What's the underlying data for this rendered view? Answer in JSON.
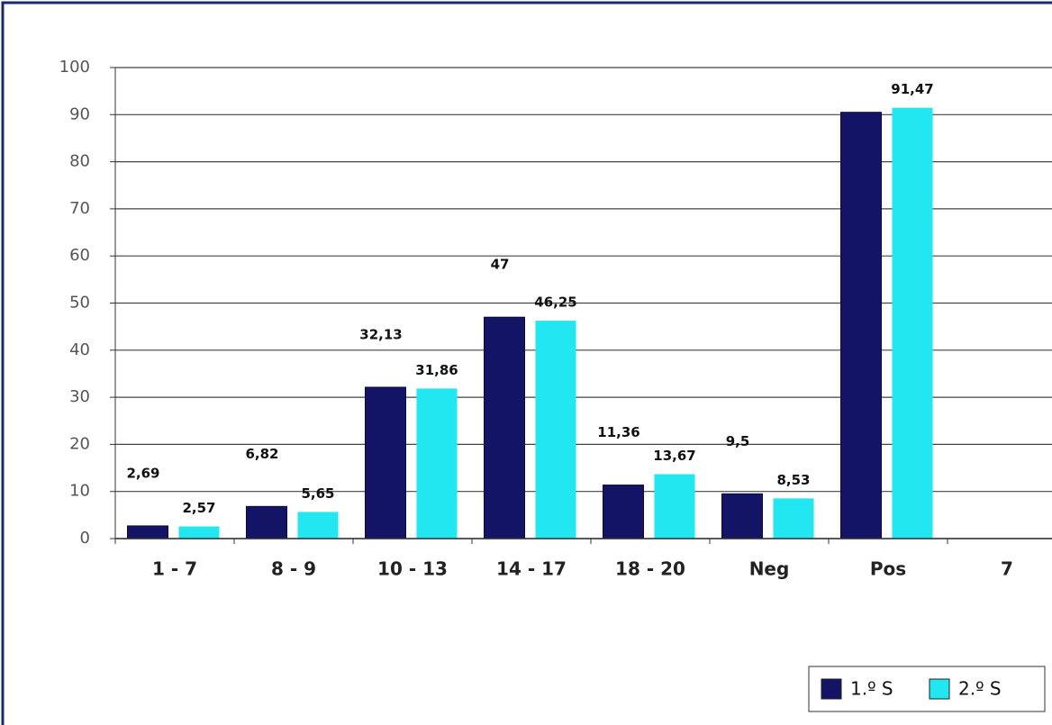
{
  "chart_data": {
    "type": "bar",
    "categories": [
      "1 - 7",
      "8 - 9",
      "10 - 13",
      "14 - 17",
      "18 - 20",
      "Neg",
      "Pos",
      "7"
    ],
    "series": [
      {
        "name": "1.º S",
        "color": "#141466",
        "values": [
          2.69,
          6.82,
          32.13,
          47,
          11.36,
          9.5,
          90.5,
          null
        ],
        "value_labels": [
          "2,69",
          "6,82",
          "32,13",
          "47",
          "11,36",
          "9,5",
          null,
          null
        ]
      },
      {
        "name": "2.º S",
        "color": "#22e6f0",
        "values": [
          2.57,
          5.65,
          31.86,
          46.25,
          13.67,
          8.53,
          91.47,
          null
        ],
        "value_labels": [
          "2,57",
          "5,65",
          "31,86",
          "46,25",
          "13,67",
          "8,53",
          "91,47",
          null
        ]
      }
    ],
    "ylim": [
      0,
      100
    ],
    "yticks": [
      0,
      10,
      20,
      30,
      40,
      50,
      60,
      70,
      80,
      90,
      100
    ],
    "grid": true,
    "legend": "bottom-right"
  }
}
